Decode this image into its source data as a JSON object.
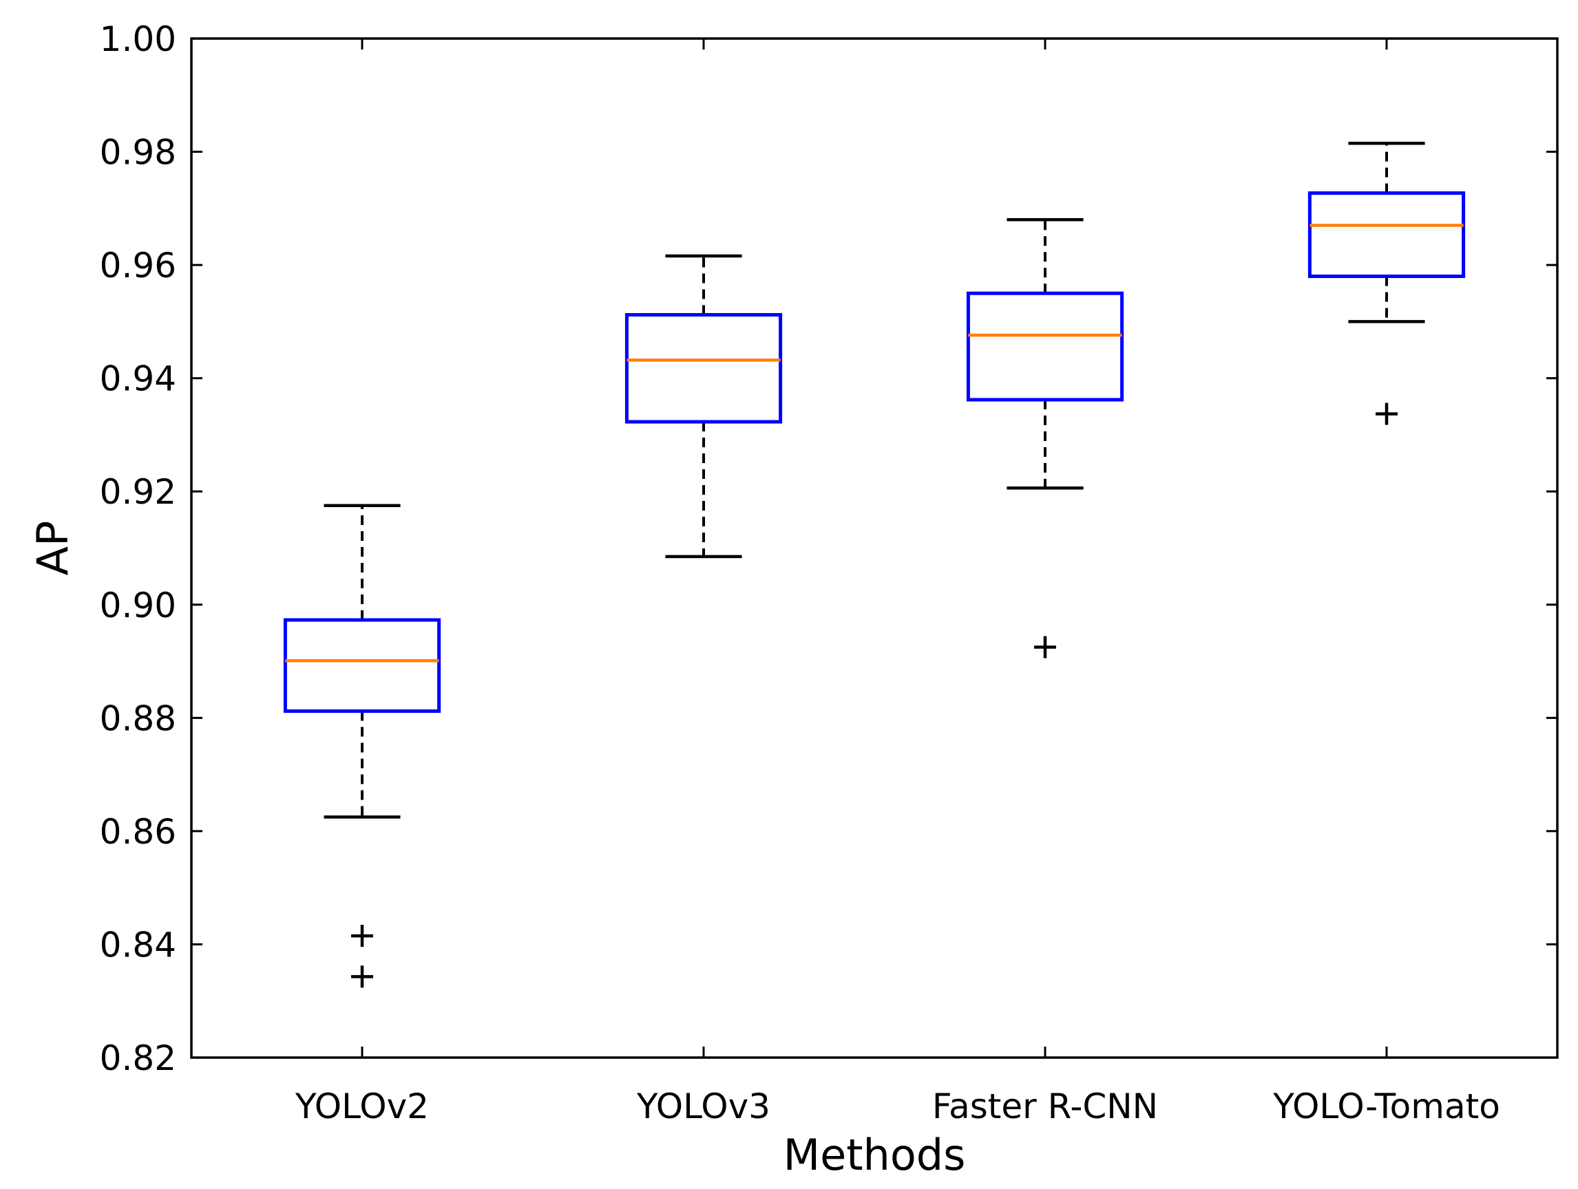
{
  "chart_data": {
    "type": "box",
    "title": "",
    "xlabel": "Methods",
    "ylabel": "AP",
    "ylim": [
      0.82,
      1.0
    ],
    "yticks": [
      "0.82",
      "0.84",
      "0.86",
      "0.88",
      "0.90",
      "0.92",
      "0.94",
      "0.96",
      "0.98",
      "1.00"
    ],
    "categories": [
      "YOLOv2",
      "YOLOv3",
      "Faster R-CNN",
      "YOLO-Tomato"
    ],
    "boxes": [
      {
        "name": "YOLOv2",
        "whisker_low": 0.8625,
        "q1": 0.8812,
        "median": 0.8901,
        "q3": 0.8973,
        "whisker_high": 0.9175,
        "outliers": [
          0.8415,
          0.8343
        ]
      },
      {
        "name": "YOLOv3",
        "whisker_low": 0.9085,
        "q1": 0.9323,
        "median": 0.9432,
        "q3": 0.9512,
        "whisker_high": 0.9616,
        "outliers": []
      },
      {
        "name": "Faster R-CNN",
        "whisker_low": 0.9206,
        "q1": 0.9362,
        "median": 0.9476,
        "q3": 0.955,
        "whisker_high": 0.968,
        "outliers": [
          0.8925
        ]
      },
      {
        "name": "YOLO-Tomato",
        "whisker_low": 0.95,
        "q1": 0.958,
        "median": 0.967,
        "q3": 0.9727,
        "whisker_high": 0.9815,
        "outliers": [
          0.9337
        ]
      }
    ],
    "colors": {
      "box": "#0000ff",
      "median": "#ff7f0e",
      "whisker": "#000000",
      "outlier": "#000000"
    },
    "grid": false,
    "legend": "none"
  }
}
